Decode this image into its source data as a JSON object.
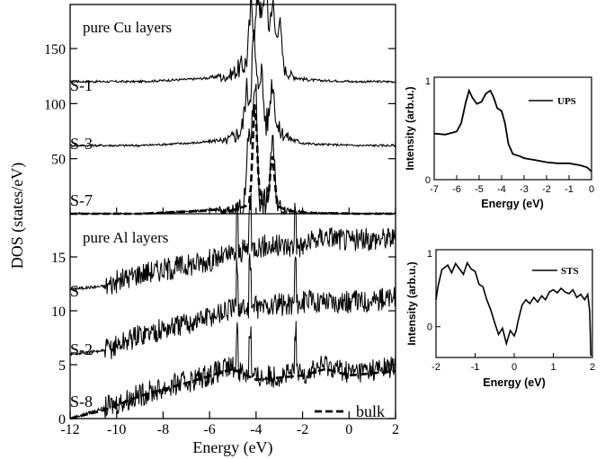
{
  "chart_data": [
    {
      "type": "line",
      "panel": "main-top",
      "annotation": "pure Cu layers",
      "ylabel": "DOS (states/eV)",
      "xlim": [
        -12,
        2
      ],
      "ylim": [
        0,
        190
      ],
      "yticks": [
        0,
        50,
        100,
        150
      ],
      "series": [
        {
          "name": "S-1",
          "offset": 120,
          "peak_energies": [
            -4.2,
            -3.9,
            -3.6,
            -3.3,
            -3.0
          ],
          "values_at_peaks": [
            168,
            180,
            192,
            176,
            162
          ]
        },
        {
          "name": "S-3",
          "offset": 62,
          "peak_energies": [
            -4.4,
            -4.1,
            -3.8,
            -3.3
          ],
          "values_at_peaks": [
            95,
            138,
            112,
            104
          ]
        },
        {
          "name": "S-7",
          "offset": 0,
          "peak_energies": [
            -4.3,
            -4.05,
            -3.3
          ],
          "values_at_peaks": [
            62,
            112,
            58
          ]
        },
        {
          "name": "bulk",
          "offset": 0,
          "peak_energies": [
            -4.05,
            -3.3
          ],
          "values_at_peaks": [
            92,
            46
          ]
        }
      ]
    },
    {
      "type": "line",
      "panel": "main-bottom",
      "annotation": "pure Al layers",
      "xlabel": "Energy (eV)",
      "xlim": [
        -12,
        2
      ],
      "ylim": [
        0,
        19
      ],
      "xticks": [
        -12,
        -10,
        -8,
        -6,
        -4,
        -2,
        0,
        2
      ],
      "yticks": [
        0,
        5,
        10,
        15
      ],
      "series": [
        {
          "name": "S",
          "offset": 12,
          "x": [
            -12,
            -10.5,
            -9,
            -7,
            -5,
            -4,
            -2,
            -1,
            0,
            2
          ],
          "y": [
            12,
            12.3,
            13.5,
            14.2,
            15.2,
            16,
            16,
            17,
            16.5,
            16.8
          ]
        },
        {
          "name": "S-2",
          "offset": 6,
          "x": [
            -12,
            -10.5,
            -9,
            -7,
            -5,
            -4,
            -2,
            -1,
            0,
            2
          ],
          "y": [
            6,
            6.3,
            7.8,
            8.8,
            10.2,
            10.3,
            10.8,
            11,
            10.8,
            11.2
          ]
        },
        {
          "name": "S-8",
          "offset": 0,
          "x": [
            -12,
            -10.5,
            -9,
            -7,
            -5,
            -4,
            -2,
            -1,
            0,
            2
          ],
          "y": [
            0,
            1,
            2.2,
            3.4,
            4.8,
            3.8,
            4.2,
            5.0,
            4.3,
            4.8
          ]
        },
        {
          "name": "bulk",
          "offset": 0,
          "x": [
            -12,
            -10.5,
            -9,
            -7,
            -5,
            -4,
            -2,
            -1,
            0,
            2
          ],
          "y": [
            0,
            0.8,
            2.1,
            3.3,
            4.6,
            3.6,
            4.0,
            4.6,
            4.0,
            4.4
          ]
        }
      ],
      "legend": [
        {
          "name": "bulk",
          "style": "dashed"
        }
      ]
    },
    {
      "type": "line",
      "panel": "ups",
      "xlabel": "Energy (eV)",
      "ylabel": "Intensity (arb.u.)",
      "xlim": [
        -7,
        0
      ],
      "ylim": [
        0,
        1
      ],
      "xticks": [
        -7,
        -6,
        -5,
        -4,
        -3,
        -2,
        -1,
        0
      ],
      "ytick_labels": [
        "0",
        "1"
      ],
      "series": [
        {
          "name": "UPS",
          "x": [
            -7,
            -6.5,
            -6,
            -5.8,
            -5.6,
            -5.45,
            -5.3,
            -5.1,
            -4.9,
            -4.7,
            -4.5,
            -4.35,
            -4.2,
            -4.0,
            -3.85,
            -3.7,
            -3.5,
            -3.2,
            -3.0,
            -2.5,
            -2,
            -1.5,
            -1,
            -0.5,
            -0.2,
            0
          ],
          "y": [
            0.45,
            0.44,
            0.47,
            0.55,
            0.75,
            0.87,
            0.8,
            0.74,
            0.76,
            0.84,
            0.87,
            0.8,
            0.7,
            0.67,
            0.55,
            0.35,
            0.25,
            0.23,
            0.21,
            0.19,
            0.17,
            0.16,
            0.16,
            0.14,
            0.12,
            0.08
          ]
        }
      ],
      "legend": [
        {
          "name": "UPS",
          "style": "solid"
        }
      ]
    },
    {
      "type": "line",
      "panel": "sts",
      "xlabel": "Energy (eV)",
      "ylabel": "Intensity (arb.u.)",
      "xlim": [
        -2,
        2
      ],
      "ylim": [
        -0.4,
        1
      ],
      "xticks": [
        -2,
        -1,
        0,
        1,
        2
      ],
      "ytick_labels": [
        "0",
        "1"
      ],
      "series": [
        {
          "name": "STS",
          "x": [
            -2,
            -1.95,
            -1.85,
            -1.7,
            -1.6,
            -1.5,
            -1.4,
            -1.3,
            -1.2,
            -1.1,
            -1.0,
            -0.9,
            -0.8,
            -0.7,
            -0.6,
            -0.5,
            -0.4,
            -0.3,
            -0.2,
            -0.1,
            0.0,
            0.05,
            0.1,
            0.2,
            0.3,
            0.4,
            0.5,
            0.6,
            0.7,
            0.8,
            0.9,
            1.0,
            1.1,
            1.2,
            1.3,
            1.4,
            1.5,
            1.6,
            1.7,
            1.8,
            1.88,
            1.93,
            1.96
          ],
          "y": [
            0.35,
            0.52,
            0.74,
            0.8,
            0.7,
            0.82,
            0.75,
            0.68,
            0.83,
            0.75,
            0.72,
            0.55,
            0.52,
            0.35,
            0.22,
            0.05,
            -0.1,
            -0.02,
            -0.22,
            -0.05,
            -0.12,
            -0.05,
            0.08,
            0.28,
            0.35,
            0.3,
            0.38,
            0.32,
            0.4,
            0.35,
            0.45,
            0.48,
            0.44,
            0.5,
            0.45,
            0.43,
            0.48,
            0.38,
            0.42,
            0.35,
            0.42,
            0.2,
            -0.38
          ]
        }
      ],
      "legend": [
        {
          "name": "STS",
          "style": "solid"
        }
      ]
    }
  ]
}
